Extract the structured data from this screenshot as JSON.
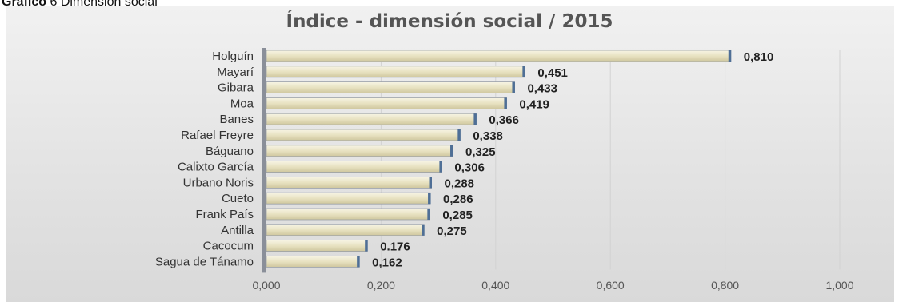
{
  "caption": {
    "prefix": "Gráfico",
    "text": "6 Dimensión social"
  },
  "chart_data": {
    "type": "bar",
    "orientation": "horizontal",
    "title": "Índice - dimensión social / 2015",
    "categories": [
      "Holguín",
      "Mayarí",
      "Gibara",
      "Moa",
      "Banes",
      "Rafael Freyre",
      "Báguano",
      "Calixto García",
      "Urbano Noris",
      "Cueto",
      "Frank País",
      "Antilla",
      "Cacocum",
      "Sagua de Tánamo"
    ],
    "values": [
      0.81,
      0.451,
      0.433,
      0.419,
      0.366,
      0.338,
      0.325,
      0.306,
      0.288,
      0.286,
      0.285,
      0.275,
      0.176,
      0.162
    ],
    "value_labels": [
      "0,810",
      "0,451",
      "0,433",
      "0,419",
      "0,366",
      "0,338",
      "0,325",
      "0,306",
      "0,288",
      "0,286",
      "0,285",
      "0,275",
      "0.176",
      "0,162"
    ],
    "xlim": [
      0,
      1.0
    ],
    "xticks": [
      0,
      0.2,
      0.4,
      0.6,
      0.8,
      1.0
    ],
    "xtick_labels": [
      "0,000",
      "0,200",
      "0,400",
      "0,600",
      "0,800",
      "1,000"
    ],
    "grid": true,
    "bar_color": "#e7e1c0",
    "bar_edge_color": "#4f6f96"
  }
}
